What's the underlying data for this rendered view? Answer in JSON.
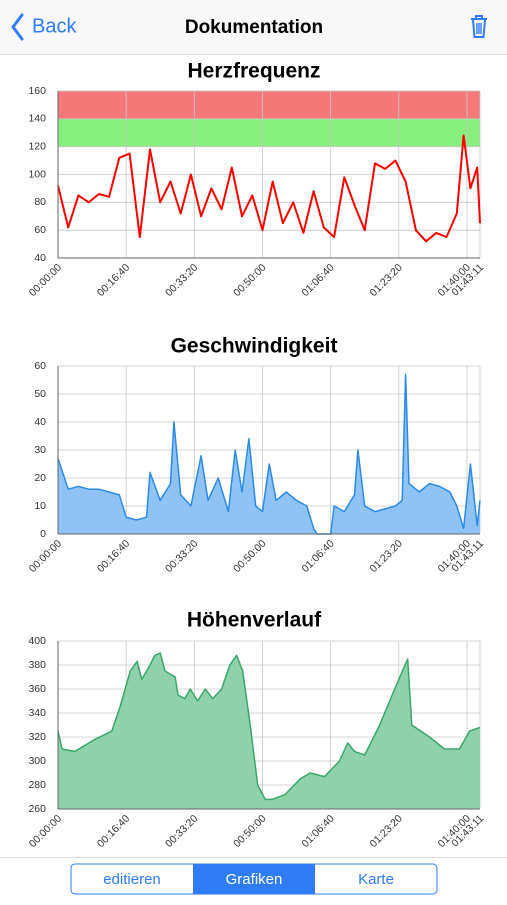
{
  "nav": {
    "back": "Back",
    "title": "Dokumentation"
  },
  "segmented": {
    "items": [
      "editieren",
      "Grafiken",
      "Karte"
    ],
    "selected": 1
  },
  "chart_data": [
    {
      "type": "line",
      "title": "Herzfrequenz",
      "color": "#ff0000",
      "bands": [
        {
          "from": 140,
          "to": 160,
          "color": "#f47878"
        },
        {
          "from": 120,
          "to": 140,
          "color": "#86ef7d"
        }
      ],
      "x": [
        0,
        150,
        300,
        450,
        600,
        750,
        900,
        1050,
        1200,
        1350,
        1500,
        1650,
        1800,
        1950,
        2100,
        2250,
        2400,
        2550,
        2700,
        2850,
        3000,
        3150,
        3300,
        3450,
        3600,
        3750,
        3900,
        4050,
        4200,
        4350,
        4500,
        4650,
        4800,
        4950,
        5100,
        5250,
        5400,
        5550,
        5700,
        5850,
        5950,
        6050,
        6150,
        6191
      ],
      "values": [
        92,
        62,
        85,
        80,
        86,
        84,
        112,
        115,
        55,
        118,
        80,
        95,
        72,
        100,
        70,
        90,
        75,
        105,
        70,
        85,
        60,
        95,
        65,
        80,
        58,
        88,
        62,
        55,
        98,
        78,
        60,
        108,
        104,
        110,
        95,
        60,
        52,
        58,
        55,
        72,
        128,
        90,
        105,
        65
      ],
      "xlim": [
        0,
        6191
      ],
      "ylim": [
        40,
        160
      ],
      "yticks": [
        40,
        60,
        80,
        100,
        120,
        140,
        160
      ],
      "xticks": [
        {
          "value": 0,
          "label": "00:00:00"
        },
        {
          "value": 1000,
          "label": "00:16:40"
        },
        {
          "value": 2000,
          "label": "00:33:20"
        },
        {
          "value": 3000,
          "label": "00:50:00"
        },
        {
          "value": 4000,
          "label": "01:06:40"
        },
        {
          "value": 5000,
          "label": "01:23:20"
        },
        {
          "value": 6000,
          "label": "01:40:00"
        },
        {
          "value": 6191,
          "label": "01:43:11"
        }
      ],
      "grid": true
    },
    {
      "type": "area",
      "title": "Geschwindigkeit",
      "color": "#2a8ae6",
      "fill_color": "#8fc3f5",
      "x": [
        0,
        150,
        300,
        450,
        600,
        750,
        900,
        1000,
        1150,
        1300,
        1350,
        1500,
        1650,
        1700,
        1800,
        1950,
        2100,
        2200,
        2350,
        2500,
        2600,
        2700,
        2800,
        2900,
        3000,
        3100,
        3200,
        3350,
        3500,
        3650,
        3750,
        3800,
        3900,
        4000,
        4050,
        4200,
        4350,
        4400,
        4500,
        4650,
        4800,
        4950,
        5050,
        5100,
        5150,
        5300,
        5450,
        5600,
        5750,
        5850,
        5950,
        6050,
        6150,
        6191
      ],
      "values": [
        27,
        16,
        17,
        16,
        16,
        15,
        14,
        6,
        5,
        6,
        22,
        12,
        18,
        40,
        14,
        10,
        28,
        12,
        20,
        8,
        30,
        15,
        34,
        10,
        8,
        25,
        12,
        15,
        12,
        10,
        2,
        0,
        0,
        0,
        10,
        8,
        14,
        30,
        10,
        8,
        9,
        10,
        12,
        57,
        18,
        15,
        18,
        17,
        15,
        10,
        2,
        25,
        3,
        12
      ],
      "xlim": [
        0,
        6191
      ],
      "ylim": [
        0,
        60
      ],
      "yticks": [
        0,
        10,
        20,
        30,
        40,
        50,
        60
      ],
      "xticks": [
        {
          "value": 0,
          "label": "00:00:00"
        },
        {
          "value": 1000,
          "label": "00:16:40"
        },
        {
          "value": 2000,
          "label": "00:33:20"
        },
        {
          "value": 3000,
          "label": "00:50:00"
        },
        {
          "value": 4000,
          "label": "01:06:40"
        },
        {
          "value": 5000,
          "label": "01:23:20"
        },
        {
          "value": 6000,
          "label": "01:40:00"
        },
        {
          "value": 6191,
          "label": "01:43:11"
        }
      ],
      "grid": true
    },
    {
      "type": "area",
      "title": "Höhenverlauf",
      "color": "#3aa76a",
      "fill_color": "#8fd1aa",
      "x": [
        0,
        60,
        250,
        540,
        790,
        910,
        1060,
        1160,
        1230,
        1350,
        1420,
        1500,
        1570,
        1720,
        1760,
        1860,
        1940,
        2050,
        2160,
        2270,
        2400,
        2520,
        2620,
        2710,
        2820,
        2930,
        3040,
        3140,
        3330,
        3550,
        3700,
        3910,
        4130,
        4250,
        4350,
        4500,
        4720,
        4940,
        5090,
        5130,
        5190,
        5450,
        5670,
        5890,
        6040,
        6191
      ],
      "values": [
        325,
        310,
        308,
        318,
        325,
        345,
        375,
        383,
        368,
        380,
        388,
        390,
        375,
        370,
        355,
        352,
        360,
        350,
        360,
        352,
        360,
        380,
        388,
        375,
        330,
        280,
        268,
        268,
        272,
        285,
        290,
        287,
        300,
        315,
        308,
        305,
        330,
        360,
        380,
        385,
        330,
        320,
        310,
        310,
        325,
        328
      ],
      "xlim": [
        0,
        6191
      ],
      "ylim": [
        260,
        400
      ],
      "yticks": [
        260,
        280,
        300,
        320,
        340,
        360,
        380,
        400
      ],
      "xticks": [
        {
          "value": 0,
          "label": "00:00:00"
        },
        {
          "value": 1000,
          "label": "00:16:40"
        },
        {
          "value": 2000,
          "label": "00:33:20"
        },
        {
          "value": 3000,
          "label": "00:50:00"
        },
        {
          "value": 4000,
          "label": "01:06:40"
        },
        {
          "value": 5000,
          "label": "01:23:20"
        },
        {
          "value": 6000,
          "label": "01:40:00"
        },
        {
          "value": 6191,
          "label": "01:43:11"
        }
      ],
      "grid": true
    }
  ]
}
